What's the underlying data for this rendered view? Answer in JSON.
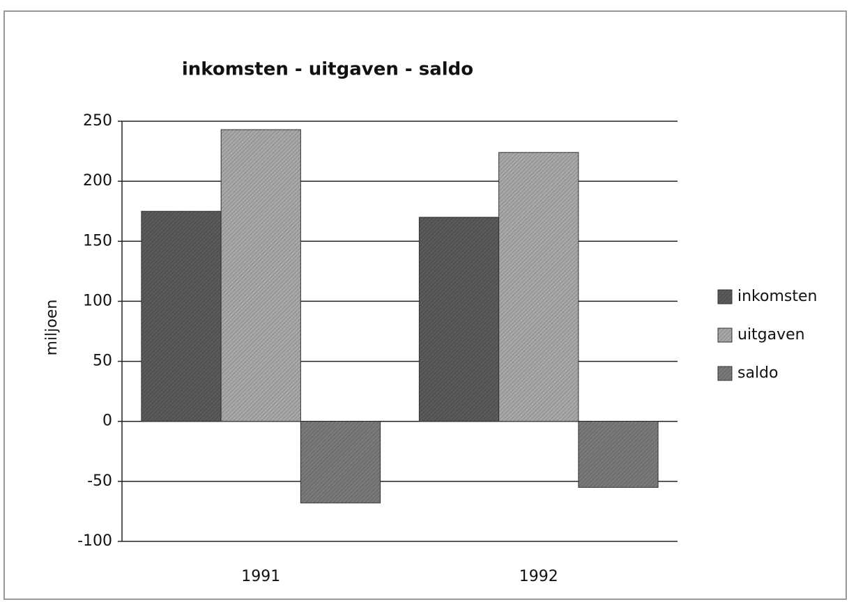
{
  "chart_data": {
    "type": "bar",
    "title": "inkomsten - uitgaven - saldo",
    "y_label": "miljoen",
    "categories": [
      "1991",
      "1992"
    ],
    "series": [
      {
        "name": "inkomsten",
        "color": "#5a5a5a",
        "values": [
          175,
          170
        ]
      },
      {
        "name": "uitgaven",
        "color": "#a8a8a8",
        "values": [
          243,
          224
        ]
      },
      {
        "name": "saldo",
        "color": "#7a7a7a",
        "values": [
          -68,
          -55
        ]
      }
    ],
    "ylim": [
      -100,
      250
    ],
    "yticks": [
      -100,
      -50,
      0,
      50,
      100,
      150,
      200,
      250
    ],
    "grid": true,
    "legend": "right"
  }
}
